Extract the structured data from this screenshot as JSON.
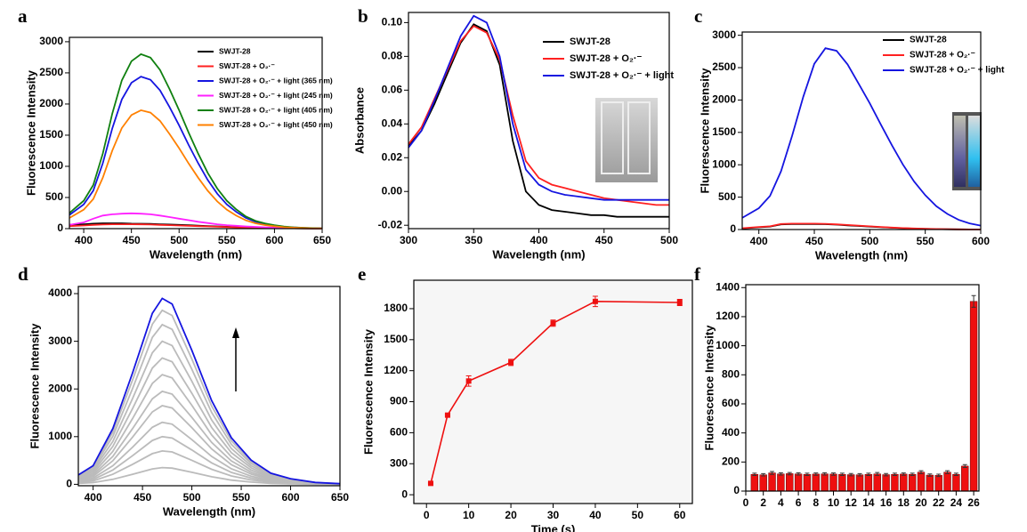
{
  "chart_data": [
    {
      "type": "line",
      "panel": "a",
      "xlabel": "Wavelength (nm)",
      "ylabel": "Fluorescence Intensity",
      "x": [
        385,
        400,
        410,
        420,
        430,
        440,
        450,
        460,
        470,
        480,
        490,
        500,
        510,
        520,
        530,
        540,
        550,
        560,
        570,
        580,
        590,
        600,
        610,
        620,
        630,
        640,
        650
      ],
      "xlim": [
        385,
        650
      ],
      "xticks": [
        400,
        450,
        500,
        550,
        600,
        650
      ],
      "ylim": [
        0,
        3070
      ],
      "yticks": [
        0,
        500,
        1000,
        1500,
        2000,
        2500,
        3000
      ],
      "series": [
        {
          "name": "SWJT-28",
          "color": "#000000",
          "values": [
            60,
            70,
            80,
            85,
            85,
            85,
            80,
            78,
            75,
            70,
            65,
            60,
            55,
            48,
            42,
            36,
            30,
            25,
            20,
            16,
            13,
            10,
            8,
            6,
            4,
            3,
            2
          ]
        },
        {
          "name": "SWJT-28 + O₂·⁻",
          "color": "#ff2020",
          "values": [
            40,
            50,
            60,
            65,
            70,
            70,
            70,
            68,
            65,
            60,
            55,
            50,
            45,
            40,
            35,
            30,
            25,
            20,
            17,
            14,
            11,
            9,
            7,
            5,
            4,
            3,
            2
          ]
        },
        {
          "name": "SWJT-28 + O₂·⁻ + light (365 nm)",
          "color": "#1515e0",
          "values": [
            220,
            390,
            610,
            1049,
            1610,
            2074,
            2342,
            2440,
            2391,
            2220,
            1952,
            1659,
            1342,
            1049,
            781,
            561,
            390,
            268,
            171,
            110,
            73,
            49,
            29,
            20,
            12,
            7,
            5
          ]
        },
        {
          "name": "SWJT-28 + O₂·⁻ + light (245 nm)",
          "color": "#ff20ff",
          "values": [
            60,
            100,
            160,
            210,
            230,
            240,
            245,
            240,
            230,
            210,
            185,
            160,
            135,
            110,
            90,
            70,
            55,
            45,
            35,
            28,
            22,
            17,
            13,
            10,
            8,
            6,
            5
          ]
        },
        {
          "name": "SWJT-28 + O₂·⁻ + light (405 nm)",
          "color": "#108010",
          "values": [
            252,
            448,
            700,
            1204,
            1848,
            2380,
            2688,
            2800,
            2744,
            2548,
            2240,
            1904,
            1540,
            1204,
            896,
            644,
            448,
            308,
            196,
            126,
            84,
            56,
            34,
            22,
            14,
            8,
            6
          ]
        },
        {
          "name": "SWJT-28 + O₂·⁻ + light (450 nm)",
          "color": "#ff8000",
          "values": [
            171,
            304,
            475,
            817,
            1254,
            1615,
            1824,
            1900,
            1862,
            1729,
            1520,
            1292,
            1045,
            817,
            608,
            437,
            304,
            209,
            133,
            86,
            57,
            38,
            23,
            15,
            10,
            6,
            4
          ]
        }
      ]
    },
    {
      "type": "line",
      "panel": "b",
      "xlabel": "Wavelength (nm)",
      "ylabel": "Absorbance",
      "x": [
        300,
        310,
        320,
        330,
        340,
        350,
        360,
        370,
        380,
        390,
        400,
        410,
        420,
        430,
        440,
        450,
        460,
        470,
        480,
        490,
        500
      ],
      "xlim": [
        300,
        500
      ],
      "xticks": [
        300,
        350,
        400,
        450,
        500
      ],
      "ylim": [
        -0.022,
        0.106
      ],
      "yticks": [
        -0.02,
        {
          "value": 0,
          "label": "0.00"
        },
        0.02,
        0.04,
        0.06,
        0.08,
        {
          "value": 0.1,
          "label": "0.10"
        }
      ],
      "series": [
        {
          "name": "SWJT-28",
          "color": "#000000",
          "values": [
            0.027,
            0.036,
            0.052,
            0.07,
            0.088,
            0.099,
            0.095,
            0.075,
            0.03,
            0.0,
            -0.008,
            -0.011,
            -0.012,
            -0.013,
            -0.014,
            -0.014,
            -0.015,
            -0.015,
            -0.015,
            -0.015,
            -0.015
          ]
        },
        {
          "name": "SWJT-28 + O₂·⁻",
          "color": "#ff2020",
          "values": [
            0.028,
            0.038,
            0.055,
            0.072,
            0.089,
            0.098,
            0.094,
            0.078,
            0.045,
            0.018,
            0.008,
            0.004,
            0.002,
            0.0,
            -0.002,
            -0.004,
            -0.005,
            -0.006,
            -0.007,
            -0.008,
            -0.008
          ]
        },
        {
          "name": "SWJT-28 + O₂·⁻ + light",
          "color": "#1515e0",
          "values": [
            0.026,
            0.036,
            0.054,
            0.073,
            0.092,
            0.104,
            0.1,
            0.08,
            0.04,
            0.013,
            0.004,
            0.0,
            -0.002,
            -0.003,
            -0.004,
            -0.005,
            -0.005,
            -0.005,
            -0.005,
            -0.005,
            -0.005
          ]
        }
      ]
    },
    {
      "type": "line",
      "panel": "c",
      "xlabel": "Wavelength (nm)",
      "ylabel": "Fluorescence Intensity",
      "x": [
        385,
        400,
        410,
        420,
        430,
        440,
        450,
        460,
        470,
        480,
        490,
        500,
        510,
        520,
        530,
        540,
        550,
        560,
        570,
        580,
        590,
        600
      ],
      "xlim": [
        385,
        600
      ],
      "xticks": [
        400,
        450,
        500,
        550,
        600
      ],
      "ylim": [
        0,
        3050
      ],
      "yticks": [
        0,
        500,
        1000,
        1500,
        2000,
        2500,
        3000
      ],
      "series": [
        {
          "name": "SWJT-28",
          "color": "#000000",
          "values": [
            15,
            35,
            45,
            80,
            85,
            85,
            85,
            82,
            75,
            65,
            55,
            45,
            36,
            27,
            20,
            14,
            10,
            7,
            4,
            3,
            2,
            1
          ]
        },
        {
          "name": "SWJT-28 + O₂·⁻",
          "color": "#ff2020",
          "values": [
            20,
            40,
            50,
            85,
            90,
            90,
            90,
            88,
            80,
            70,
            60,
            50,
            40,
            30,
            22,
            16,
            11,
            8,
            5,
            3,
            2,
            1
          ]
        },
        {
          "name": "SWJT-28 + O₂·⁻ + light",
          "color": "#1515e0",
          "values": [
            180,
            330,
            520,
            900,
            1450,
            2050,
            2560,
            2800,
            2760,
            2550,
            2250,
            1950,
            1620,
            1300,
            1000,
            740,
            530,
            360,
            240,
            150,
            95,
            60
          ]
        }
      ]
    },
    {
      "type": "line",
      "panel": "d",
      "xlabel": "Wavelength (nm)",
      "ylabel": "Fluorescence Intensity",
      "x": [
        385,
        400,
        420,
        440,
        460,
        470,
        480,
        500,
        520,
        540,
        560,
        580,
        600,
        625,
        650
      ],
      "xlim": [
        385,
        650
      ],
      "xticks": [
        400,
        450,
        500,
        550,
        600,
        650
      ],
      "ylim": [
        -30,
        4150
      ],
      "yticks": [
        0,
        1000,
        2000,
        3000,
        4000
      ],
      "series": [
        {
          "color": "#bbbbbb",
          "values": [
            18,
            35,
            105,
            210,
            322,
            350,
            340,
            252,
            158,
            88,
            46,
            21,
            11,
            4,
            1
          ]
        },
        {
          "color": "#bbbbbb",
          "values": [
            35,
            70,
            210,
            420,
            644,
            700,
            679,
            504,
            315,
            175,
            91,
            42,
            21,
            7,
            2
          ]
        },
        {
          "color": "#bbbbbb",
          "values": [
            50,
            100,
            300,
            600,
            920,
            1000,
            970,
            720,
            450,
            250,
            130,
            60,
            30,
            10,
            3
          ]
        },
        {
          "color": "#bbbbbb",
          "values": [
            65,
            130,
            390,
            780,
            1196,
            1300,
            1261,
            936,
            585,
            325,
            169,
            78,
            39,
            13,
            4
          ]
        },
        {
          "color": "#bbbbbb",
          "values": [
            83,
            165,
            495,
            990,
            1518,
            1650,
            1601,
            1188,
            743,
            413,
            215,
            99,
            50,
            17,
            5
          ]
        },
        {
          "color": "#bbbbbb",
          "values": [
            98,
            195,
            585,
            1170,
            1794,
            1950,
            1892,
            1404,
            878,
            488,
            254,
            117,
            59,
            20,
            6
          ]
        },
        {
          "color": "#bbbbbb",
          "values": [
            115,
            230,
            690,
            1380,
            2116,
            2300,
            2231,
            1656,
            1035,
            575,
            299,
            138,
            69,
            23,
            7
          ]
        },
        {
          "color": "#bbbbbb",
          "values": [
            133,
            265,
            795,
            1590,
            2438,
            2650,
            2571,
            1908,
            1193,
            663,
            345,
            159,
            80,
            27,
            8
          ]
        },
        {
          "color": "#bbbbbb",
          "values": [
            150,
            300,
            900,
            1800,
            2760,
            3000,
            2910,
            2160,
            1350,
            750,
            390,
            180,
            90,
            30,
            9
          ]
        },
        {
          "color": "#bbbbbb",
          "values": [
            168,
            335,
            1005,
            2010,
            3082,
            3350,
            3250,
            2412,
            1508,
            838,
            436,
            201,
            101,
            34,
            10
          ]
        },
        {
          "color": "#bbbbbb",
          "values": [
            183,
            365,
            1095,
            2190,
            3358,
            3650,
            3541,
            2628,
            1643,
            913,
            475,
            219,
            110,
            37,
            11
          ]
        },
        {
          "color": "#1515e0",
          "values": [
            195,
            390,
            1170,
            2340,
            3588,
            3900,
            3783,
            2808,
            1755,
            975,
            507,
            234,
            117,
            39,
            12
          ]
        }
      ]
    },
    {
      "type": "errline",
      "panel": "e",
      "xlabel": "Time (s)",
      "ylabel": "Fluorescence Intensity",
      "x": [
        1,
        5,
        10,
        20,
        30,
        40,
        60
      ],
      "xlim": [
        -3,
        63
      ],
      "xticks": [
        0,
        10,
        20,
        30,
        40,
        50,
        60
      ],
      "ylim": [
        -85,
        2075
      ],
      "yticks": [
        0,
        300,
        600,
        900,
        1200,
        1500,
        1800
      ],
      "series": [
        {
          "color": "#ee1010",
          "values": [
            110,
            770,
            1100,
            1280,
            1660,
            1870,
            1860
          ],
          "errors": [
            5,
            10,
            50,
            30,
            30,
            50,
            30
          ]
        }
      ]
    },
    {
      "type": "bar",
      "panel": "f",
      "ylabel": "Fluorescence Intensity",
      "x": [
        1,
        2,
        3,
        4,
        5,
        6,
        7,
        8,
        9,
        10,
        11,
        12,
        13,
        14,
        15,
        16,
        17,
        18,
        19,
        20,
        21,
        22,
        23,
        24,
        25,
        26
      ],
      "xlim": [
        0,
        26.6
      ],
      "xticks": [
        0,
        2,
        4,
        6,
        8,
        10,
        12,
        14,
        16,
        18,
        20,
        22,
        24,
        26
      ],
      "ylim": [
        0,
        1420
      ],
      "yticks": [
        0,
        200,
        400,
        600,
        800,
        1000,
        1200,
        1400
      ],
      "series": [
        {
          "color": "#ee1010",
          "values": [
            115,
            112,
            125,
            118,
            120,
            118,
            115,
            117,
            118,
            117,
            115,
            113,
            112,
            115,
            118,
            113,
            115,
            117,
            115,
            130,
            110,
            108,
            130,
            115,
            172,
            1305
          ],
          "errors": [
            8,
            8,
            10,
            8,
            8,
            8,
            8,
            8,
            8,
            8,
            8,
            8,
            8,
            8,
            10,
            8,
            8,
            8,
            8,
            10,
            8,
            8,
            10,
            8,
            10,
            40
          ]
        }
      ]
    }
  ]
}
